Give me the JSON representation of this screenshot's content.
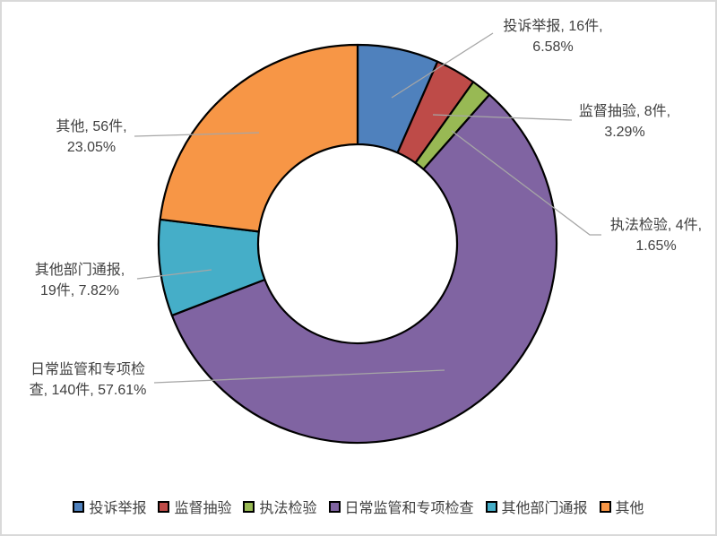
{
  "chart_data": {
    "type": "pie",
    "subtype": "donut",
    "title": "",
    "categories": [
      "投诉举报",
      "监督抽验",
      "执法检验",
      "日常监管和专项检查",
      "其他部门通报",
      "其他"
    ],
    "values": [
      16,
      8,
      4,
      140,
      19,
      56
    ],
    "unit": "件",
    "percent_labels": [
      "6.58%",
      "3.29%",
      "1.65%",
      "57.61%",
      "7.82%",
      "23.05%"
    ],
    "colors": [
      "#4F81BD",
      "#BE4B48",
      "#98B954",
      "#8064A2",
      "#45AEC8",
      "#F79646"
    ],
    "stroke_color": "#000000",
    "leader_line_color": "#A6A6A6",
    "label_text_color": "#404040",
    "legend_position": "bottom",
    "slice_labels": [
      {
        "line1": "投诉举报, 16件,",
        "line2": "6.58%"
      },
      {
        "line1": "监督抽验, 8件,",
        "line2": "3.29%"
      },
      {
        "line1": "执法检验, 4件,",
        "line2": "1.65%"
      },
      {
        "line1": "日常监管和专项检",
        "line2": "查, 140件, 57.61%"
      },
      {
        "line1": "其他部门通报,",
        "line2": "19件, 7.82%"
      },
      {
        "line1": "其他, 56件,",
        "line2": "23.05%"
      }
    ],
    "legend": [
      "投诉举报",
      "监督抽验",
      "执法检验",
      "日常监管和专项检查",
      "其他部门通报",
      "其他"
    ]
  }
}
